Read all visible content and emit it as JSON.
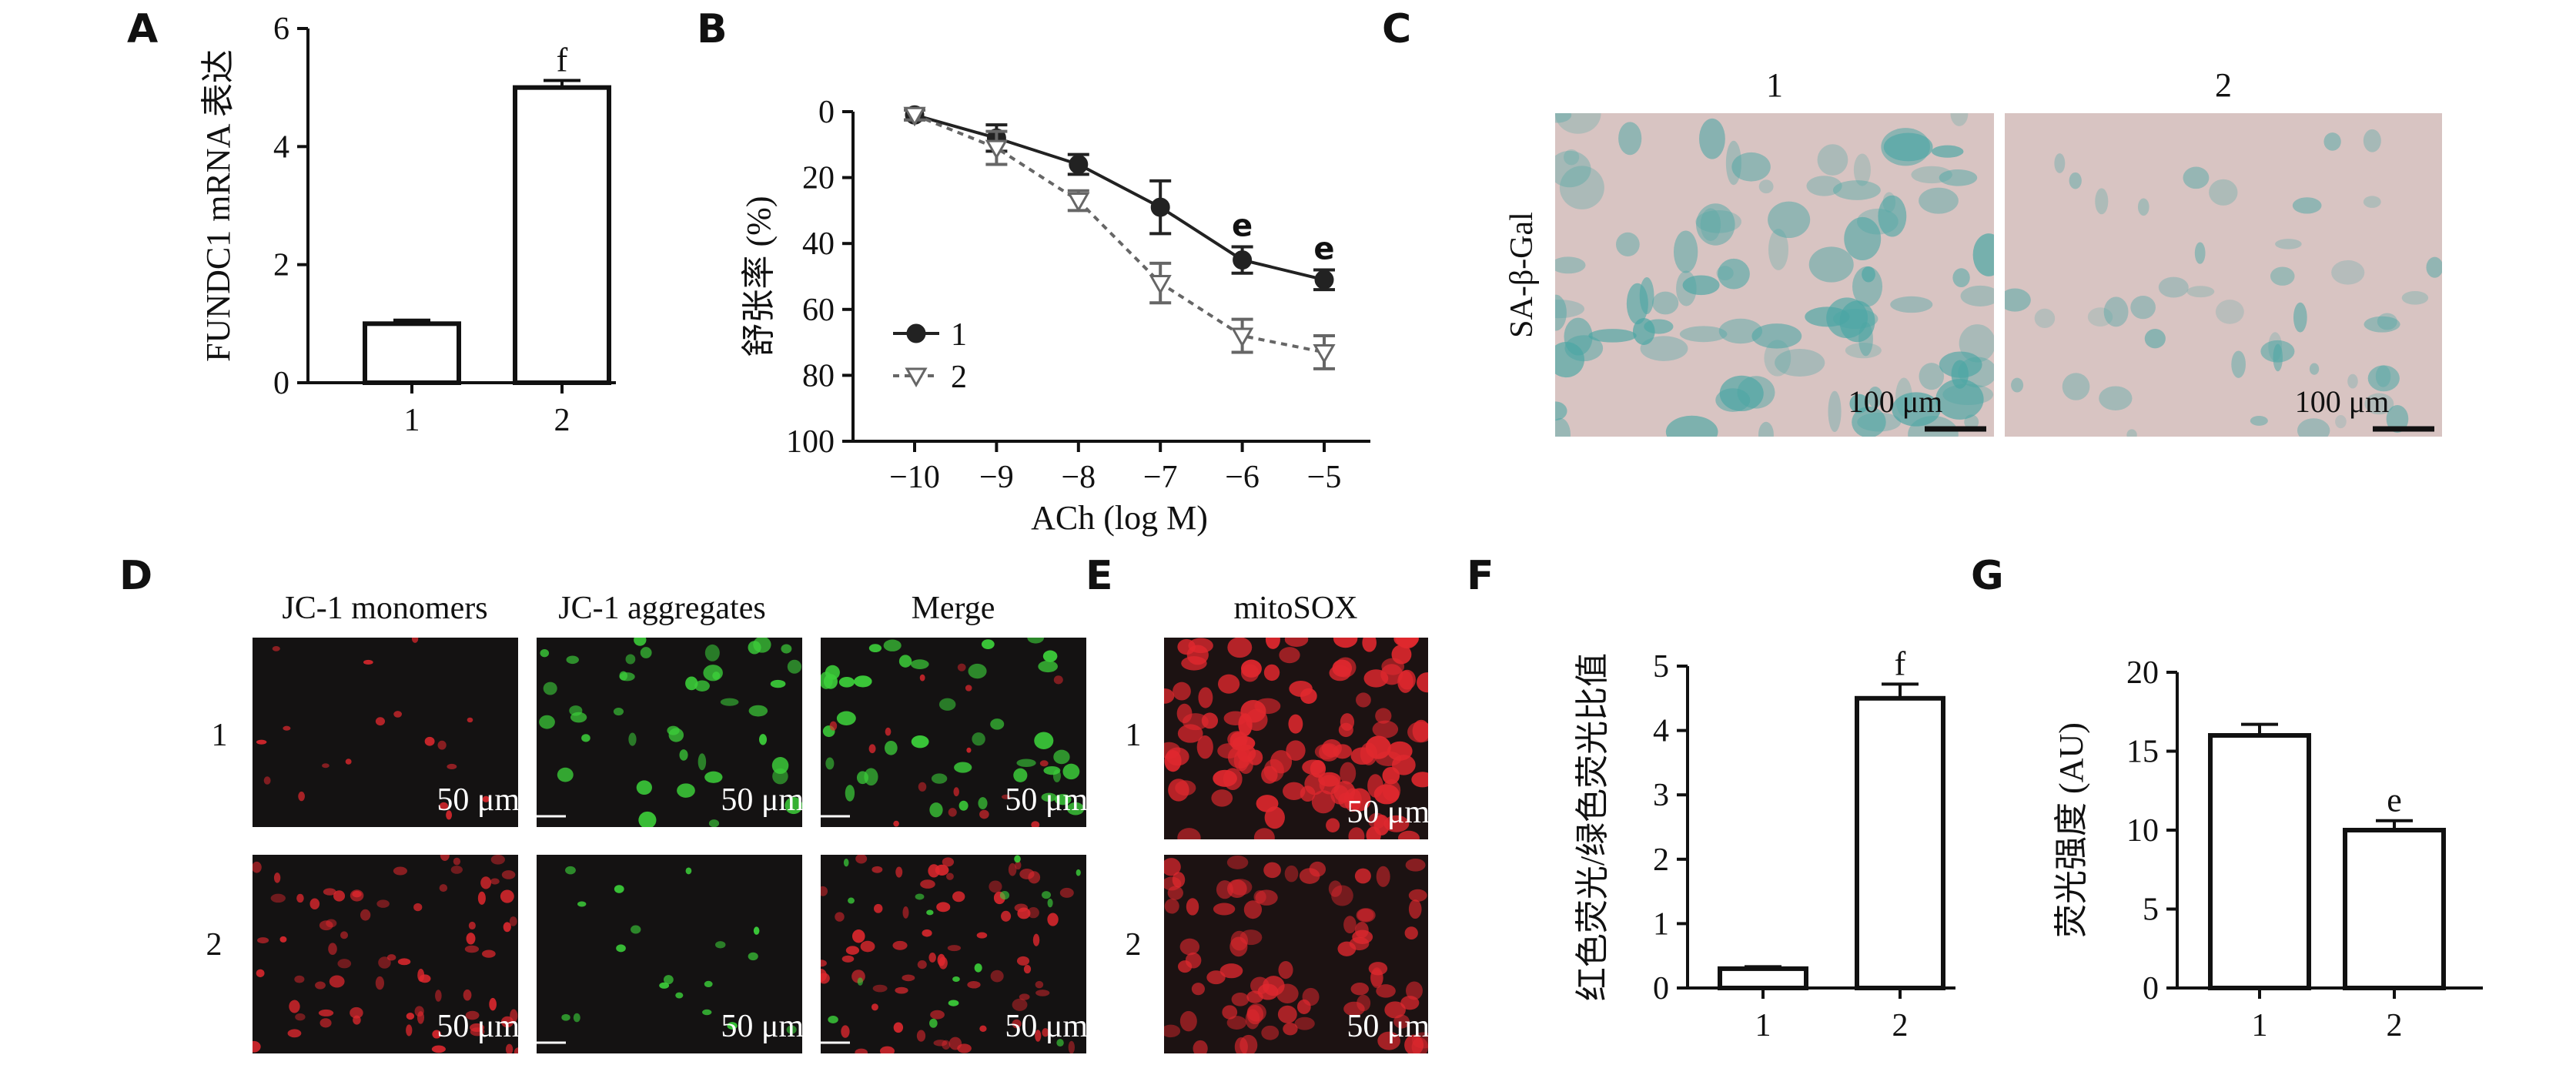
{
  "panels": {
    "A": {
      "letter": "A"
    },
    "B": {
      "letter": "B"
    },
    "C": {
      "letter": "C",
      "col1": "1",
      "col2": "2",
      "row_label": "SA-β-Gal",
      "scale1": "100 μm",
      "scale2": "100 μm"
    },
    "D": {
      "letter": "D",
      "col1": "JC-1 monomers",
      "col2": "JC-1 aggregates",
      "col3": "Merge",
      "row1": "1",
      "row2": "2",
      "scale": "50 μm"
    },
    "E": {
      "letter": "E",
      "col1": "mitoSOX",
      "row1": "1",
      "row2": "2",
      "scale": "50 μm"
    },
    "F": {
      "letter": "F"
    },
    "G": {
      "letter": "G"
    }
  },
  "colors": {
    "sa_bg": "#d8c4c2",
    "sa_stain": "#4aa6a4",
    "fluor_bg": "#141212",
    "red_cell": "#e0282e",
    "green_cell": "#3ccf3a"
  },
  "chart_data": [
    {
      "panel": "A",
      "type": "bar",
      "categories": [
        "1",
        "2"
      ],
      "values": [
        1.0,
        5.0
      ],
      "errors": [
        0.06,
        0.12
      ],
      "annotations": [
        "",
        "f"
      ],
      "ylabel": "FUNDC1 mRNA 表达",
      "ylim": [
        0,
        6
      ],
      "yticks": [
        0,
        2,
        4,
        6
      ]
    },
    {
      "panel": "B",
      "type": "line",
      "x": [
        -10,
        -9,
        -8,
        -7,
        -6,
        -5
      ],
      "xticks": [
        "−10",
        "−9",
        "−8",
        "−7",
        "−6",
        "−5"
      ],
      "series": [
        {
          "name": "1",
          "values": [
            1,
            8,
            16,
            29,
            45,
            51
          ],
          "errors": [
            1.5,
            4,
            3,
            8,
            4,
            3
          ],
          "annotations": [
            "",
            "",
            "",
            "",
            "e",
            "e"
          ]
        },
        {
          "name": "2",
          "values": [
            1,
            11,
            27,
            52,
            68,
            73
          ],
          "errors": [
            1.5,
            5,
            3,
            6,
            5,
            5
          ]
        }
      ],
      "xlabel": "ACh (log M)",
      "ylabel": "舒张率 (%)",
      "ylim": [
        0,
        100
      ],
      "yticks": [
        0,
        20,
        40,
        60,
        80,
        100
      ],
      "y_inverted": true,
      "legend": "left"
    },
    {
      "panel": "F",
      "type": "bar",
      "categories": [
        "1",
        "2"
      ],
      "values": [
        0.3,
        4.5
      ],
      "errors": [
        0.03,
        0.22
      ],
      "annotations": [
        "",
        "f"
      ],
      "ylabel": "红色荧光/绿色荧光比值",
      "ylim": [
        0,
        5
      ],
      "yticks": [
        0,
        1,
        2,
        3,
        4,
        5
      ]
    },
    {
      "panel": "G",
      "type": "bar",
      "categories": [
        "1",
        "2"
      ],
      "values": [
        16,
        10
      ],
      "errors": [
        0.7,
        0.6
      ],
      "annotations": [
        "",
        "e"
      ],
      "ylabel": "荧光强度 (AU)",
      "ylim": [
        0,
        20
      ],
      "yticks": [
        0,
        5,
        10,
        15,
        20
      ]
    }
  ]
}
